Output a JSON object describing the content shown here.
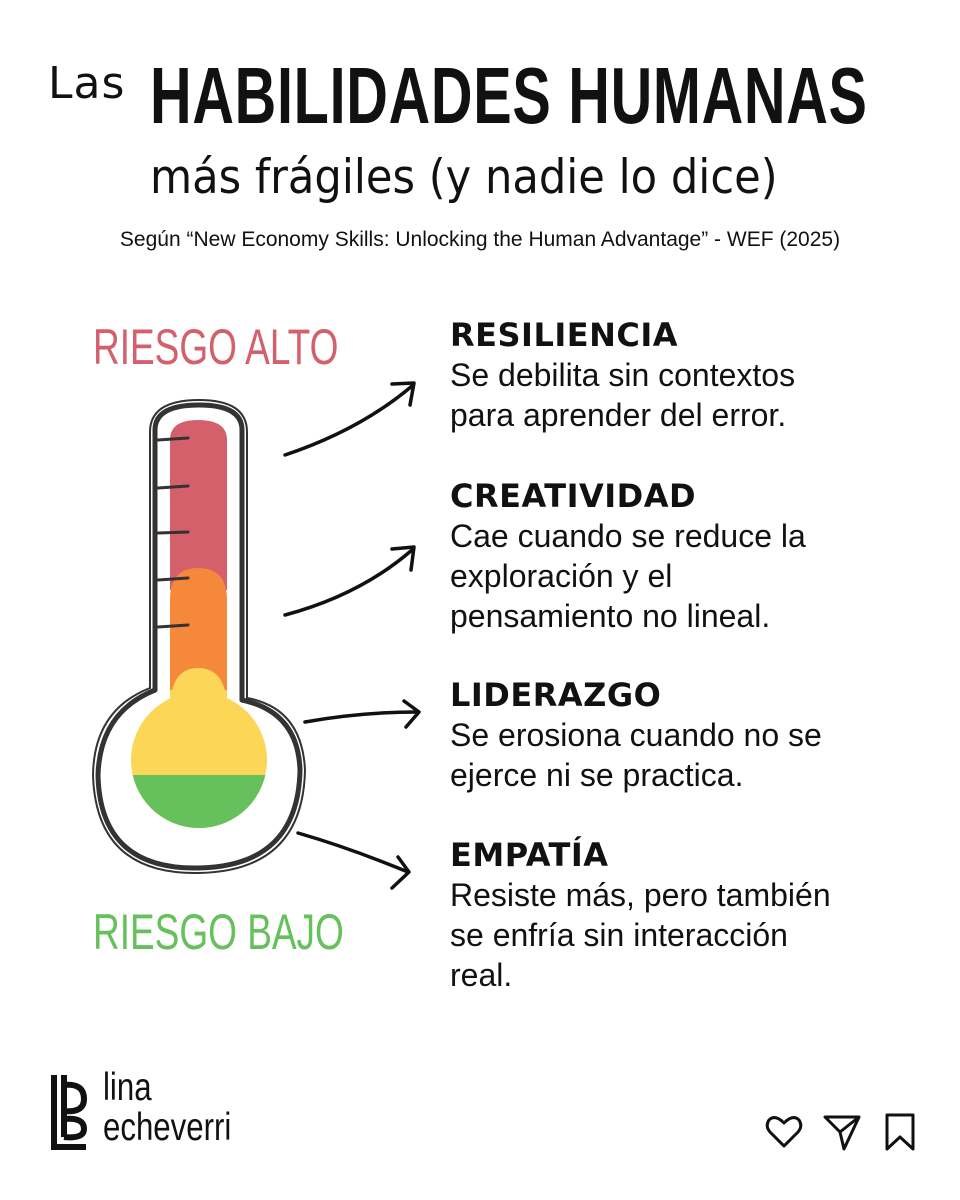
{
  "header": {
    "las": "Las",
    "main": "HABILIDADES HUMANAS",
    "subtitle": "más frágiles (y nadie lo dice)",
    "source": "Según “New Economy Skills: Unlocking the Human Advantage” - WEF (2025)"
  },
  "thermometer": {
    "high_label": "RIESGO ALTO",
    "low_label": "RIESGO BAJO",
    "colors": {
      "high": "#d4606b",
      "mid": "#f5883a",
      "low_mid": "#fcd757",
      "low": "#66c05c",
      "outline": "#333333"
    }
  },
  "skills": [
    {
      "name": "RESILIENCIA",
      "desc": [
        "Se debilita sin contextos",
        "para aprender del error."
      ]
    },
    {
      "name": "CREATIVIDAD",
      "desc": [
        "Cae cuando se reduce la",
        "exploración y el",
        "pensamiento no lineal."
      ]
    },
    {
      "name": "LIDERAZGO",
      "desc": [
        "Se erosiona cuando no se",
        "ejerce ni se practica."
      ]
    },
    {
      "name": "EMPATÍA",
      "desc": [
        "Resiste más, pero también",
        "se enfría sin interacción",
        "real."
      ]
    }
  ],
  "brand": {
    "line1": "lina",
    "line2": "echeverri"
  },
  "actions": {
    "icons": [
      "heart-icon",
      "send-icon",
      "bookmark-icon"
    ]
  }
}
